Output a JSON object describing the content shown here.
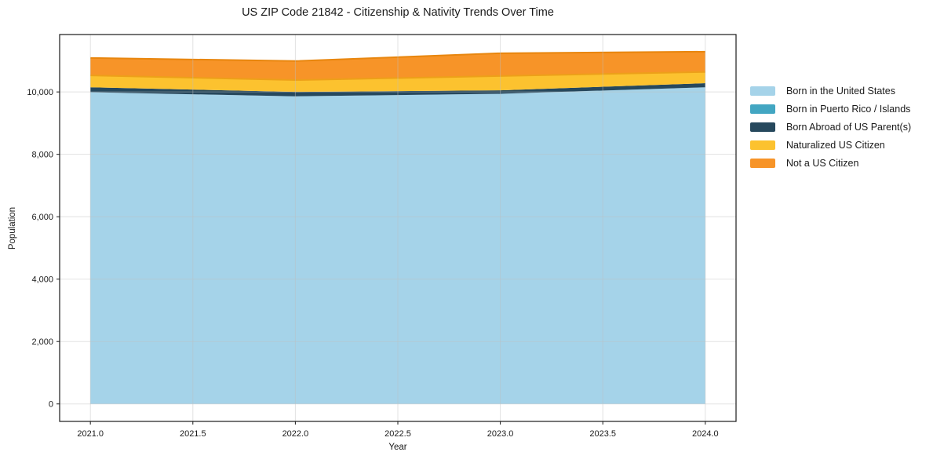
{
  "chart": {
    "title": "US ZIP Code 21842 - Citizenship & Nativity Trends Over Time",
    "xlabel": "Year",
    "ylabel": "Population"
  },
  "chart_data": {
    "type": "area",
    "stacked": true,
    "title": "US ZIP Code 21842 - Citizenship & Nativity Trends Over Time",
    "xlabel": "Year",
    "ylabel": "Population",
    "x": [
      2021,
      2022,
      2023,
      2024
    ],
    "series": [
      {
        "name": "Born in the United States",
        "color": "#a5d3e9",
        "values": [
          9990,
          9860,
          9940,
          10150
        ]
      },
      {
        "name": "Born in Puerto Rico / Islands",
        "color": "#42a6c2",
        "values": [
          0,
          0,
          0,
          0
        ]
      },
      {
        "name": "Born Abroad of US Parent(s)",
        "color": "#26485d",
        "values": [
          160,
          140,
          110,
          130
        ]
      },
      {
        "name": "Naturalized US Citizen",
        "color": "#fcc22f",
        "edge": "#eda019",
        "values": [
          380,
          380,
          460,
          360
        ]
      },
      {
        "name": "Not a US Citizen",
        "color": "#f79428",
        "edge": "#e8860e",
        "values": [
          560,
          610,
          730,
          650
        ]
      }
    ],
    "stack_totals": [
      11090,
      10990,
      11240,
      11290
    ],
    "xlim": [
      2020.85,
      2024.15
    ],
    "ylim": [
      -560,
      11840
    ],
    "xticks": {
      "values": [
        2021.0,
        2021.5,
        2022.0,
        2022.5,
        2023.0,
        2023.5,
        2024.0
      ],
      "labels": [
        "2021.0",
        "2021.5",
        "2022.0",
        "2022.5",
        "2023.0",
        "2023.5",
        "2024.0"
      ]
    },
    "yticks": {
      "values": [
        0,
        2000,
        4000,
        6000,
        8000,
        10000
      ],
      "labels": [
        "0",
        "2,000",
        "4,000",
        "6,000",
        "8,000",
        "10,000"
      ]
    },
    "grid": true,
    "legend_position": "right-outside",
    "spine_color": "#1a1a1a",
    "grid_color": "rgba(190,190,190,0.45)"
  }
}
